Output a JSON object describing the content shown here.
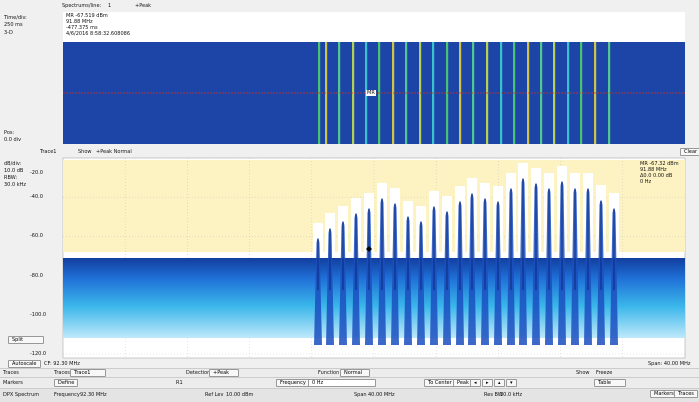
{
  "spectrogram": {
    "time_div_label": "Time/div:",
    "time_div": "250 ms",
    "three_d": "3-D",
    "pos_label": "Pos:",
    "pos": "0.0 div",
    "spectrums_label": "Spectrums/line:",
    "spectrums": "1",
    "detection": "+Peak",
    "readout": [
      "MR -67.519 dBm",
      "91.88 MHz",
      "-477.375 ms",
      "4/6/2016 8:58:32.608086"
    ],
    "marker": "MR"
  },
  "trace_bar": {
    "trace": "Trace1",
    "show": "Show",
    "mode": "+Peak Normal",
    "clear": "Clear"
  },
  "spectrum": {
    "db_div_label": "dB/div:",
    "db_div": "10.0 dB",
    "rbw_label": "RBW:",
    "rbw": "30.0 kHz",
    "yticks": [
      "-20.0",
      "-40.0",
      "-60.0",
      "-80.0",
      "-100.0",
      "-120.0"
    ],
    "readout": [
      "MR -67.32 dBm",
      "91.88 MHz",
      "Δ0.0 0.00 dB",
      "0 Hz"
    ],
    "split": "Split",
    "autoscale": "Autoscale",
    "cf": "CF: 92.30 MHz",
    "span": "Span: 40.00 MHz"
  },
  "controls": {
    "traces": {
      "label": "Traces",
      "traces_label": "Traces",
      "trace": "Trace1",
      "detection_label": "Detection",
      "detection": "+Peak",
      "function_label": "Function",
      "function": "Normal",
      "show": "Show",
      "freeze": "Freeze"
    },
    "markers": {
      "label": "Markers",
      "define": "Define",
      "marker": "R1",
      "frequency_label": "Frequency",
      "frequency": "0 Hz",
      "to_center": "To Center",
      "peak": "Peak",
      "table": "Table"
    },
    "status": {
      "name": "DPX Spectrum",
      "frequency_label": "Frequency",
      "frequency": "92.30 MHz",
      "ref_label": "Ref Lev",
      "ref": "10.00 dBm",
      "span_label": "Span",
      "span": "40.00 MHz",
      "rbw_label": "Res BW",
      "rbw": "30.0 kHz",
      "markers": "Markers",
      "traces": "Traces"
    }
  }
}
